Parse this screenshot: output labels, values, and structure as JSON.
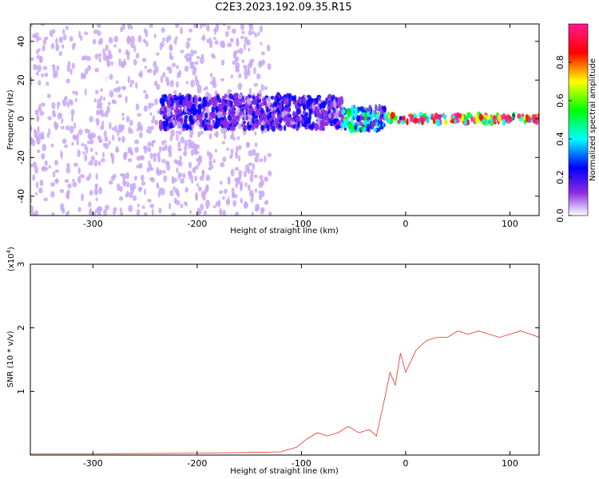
{
  "title": "C2E3.2023.192.09.35.R15",
  "chart_data": [
    {
      "type": "heatmap",
      "xlabel": "Height of straight line (km)",
      "ylabel": "Frequency (Hz)",
      "xlim": [
        -360,
        128
      ],
      "ylim": [
        -50,
        49
      ],
      "xticks": [
        -300,
        -200,
        -100,
        0,
        100
      ],
      "yticks": [
        -40,
        -20,
        0,
        20,
        40
      ],
      "colorbar": {
        "label": "Normalized spectral amplitude",
        "range": [
          0.0,
          1.0
        ],
        "ticks": [
          0.0,
          0.2,
          0.4,
          0.6,
          0.8
        ],
        "colormap": "rainbow",
        "colors": [
          "#ffffff",
          "#c9a8f5",
          "#8a2be2",
          "#0000ff",
          "#00ffff",
          "#00ff00",
          "#ffff00",
          "#ff0000",
          "#ff1a8c"
        ]
      },
      "features": [
        {
          "x_range": [
            -360,
            -130
          ],
          "freq_range": [
            -50,
            49
          ],
          "amplitude": 0.12
        },
        {
          "x_range": [
            -235,
            -60
          ],
          "freq_range": [
            -5,
            12
          ],
          "amplitude": 0.3
        },
        {
          "x_range": [
            -60,
            -20
          ],
          "freq_range": [
            -6,
            6
          ],
          "amplitude": 0.45
        },
        {
          "x_range": [
            -20,
            128
          ],
          "freq_range": [
            -2,
            2
          ],
          "amplitude": 0.85
        }
      ]
    },
    {
      "type": "line",
      "xlabel": "Height of straight line (km)",
      "ylabel": "SNR (10 * v/v)",
      "y_multiplier": "(x10",
      "y_multiplier_exp": "4",
      "y_multiplier_close": ")",
      "xlim": [
        -360,
        128
      ],
      "ylim": [
        0,
        3
      ],
      "xticks": [
        -300,
        -200,
        -100,
        0,
        100
      ],
      "yticks": [
        1,
        2,
        3
      ],
      "color": "#e8302a",
      "series": [
        {
          "x": [
            -360,
            -300,
            -200,
            -150,
            -120,
            -105,
            -95,
            -85,
            -75,
            -65,
            -55,
            -45,
            -35,
            -28,
            -20,
            -15,
            -10,
            -5,
            0,
            10,
            20,
            30,
            40,
            50,
            60,
            70,
            80,
            90,
            100,
            110,
            120,
            128
          ],
          "y": [
            0.02,
            0.02,
            0.03,
            0.04,
            0.05,
            0.12,
            0.25,
            0.35,
            0.3,
            0.35,
            0.45,
            0.35,
            0.4,
            0.3,
            0.9,
            1.3,
            1.1,
            1.6,
            1.3,
            1.65,
            1.8,
            1.85,
            1.85,
            1.95,
            1.9,
            1.95,
            1.9,
            1.85,
            1.9,
            1.95,
            1.9,
            1.85
          ]
        }
      ]
    }
  ]
}
